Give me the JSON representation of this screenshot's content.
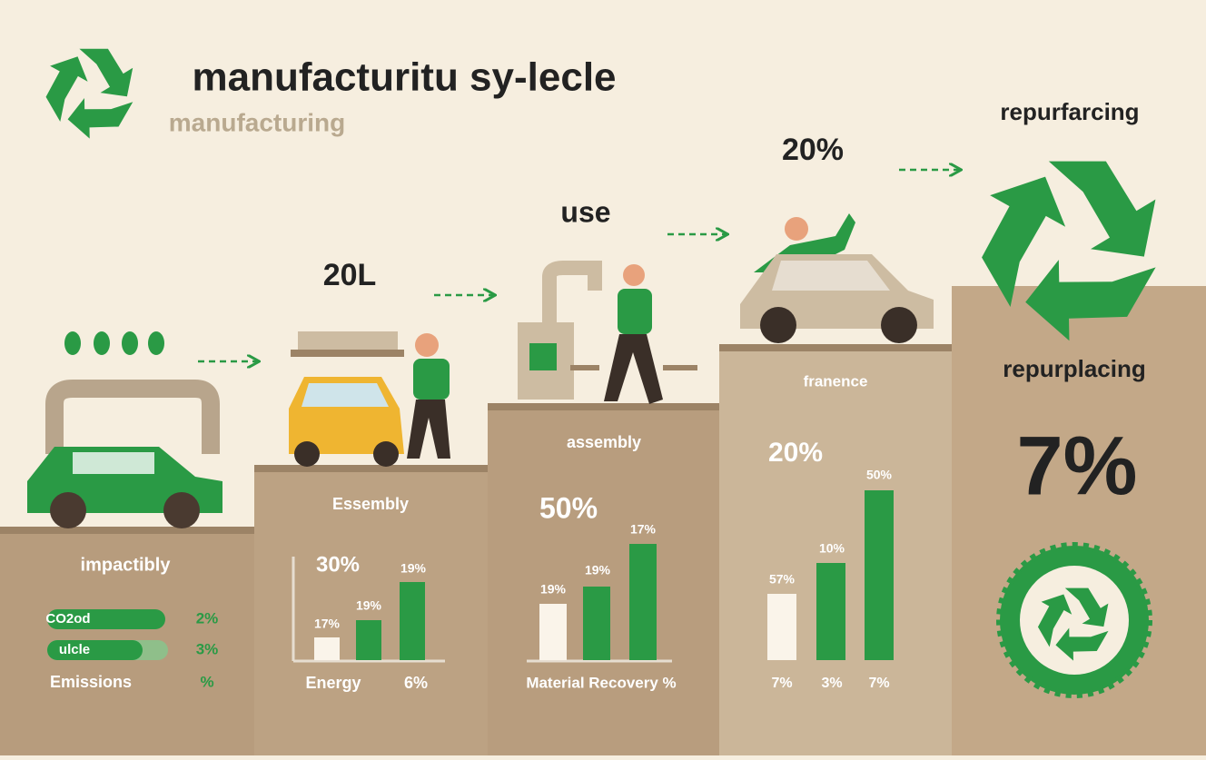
{
  "header": {
    "title": "manufacturitu sy-lecle",
    "subtitle": "manufacturing"
  },
  "steps": {
    "labels": [
      "20L",
      "use",
      "20%",
      "repurfarcing"
    ]
  },
  "section1": {
    "title": "impactibly",
    "rows": [
      {
        "label": "CO2od",
        "value": "2%"
      },
      {
        "label": "ulcle",
        "value": "3%"
      },
      {
        "label": "Emissions",
        "value": "%"
      }
    ]
  },
  "section2": {
    "title": "Essembly",
    "headline": "30%",
    "bar_labels": [
      "17%",
      "19%",
      "19%"
    ],
    "footer": [
      "Energy",
      "6%"
    ]
  },
  "section3": {
    "title": "assembly",
    "headline": "50%",
    "bar_labels": [
      "19%",
      "19%",
      "17%"
    ],
    "footer": [
      "Material Recovery %"
    ]
  },
  "section4": {
    "title": "franence",
    "headline": "20%",
    "bar_labels": [
      "57%",
      "10%",
      "50%"
    ],
    "footer": [
      "7%",
      "3%",
      "7%"
    ]
  },
  "section5": {
    "title": "repurplacing",
    "headline": "7%"
  }
}
